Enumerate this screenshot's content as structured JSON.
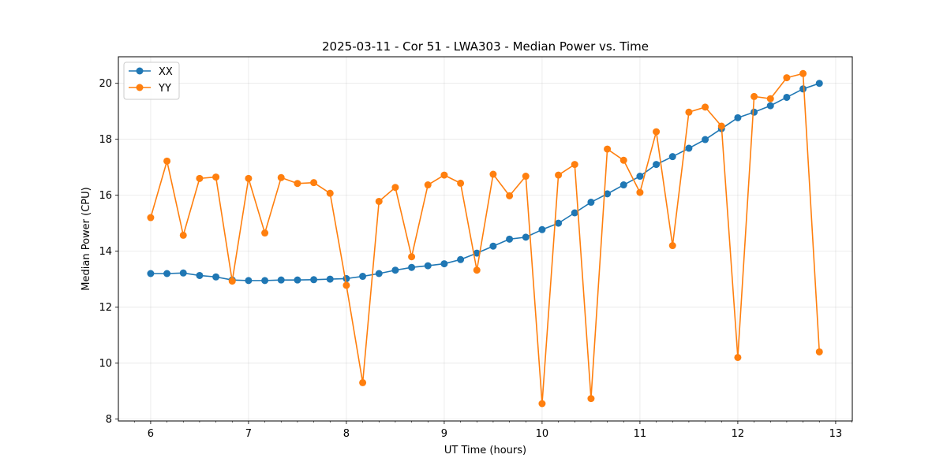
{
  "chart_data": {
    "type": "line",
    "title": "2025-03-11 - Cor 51 - LWA303 - Median Power vs. Time",
    "xlabel": "UT Time (hours)",
    "ylabel": "Median Power (CPU)",
    "xlim": [
      5.67,
      13.17
    ],
    "ylim": [
      7.93,
      20.95
    ],
    "xticks": [
      6,
      7,
      8,
      9,
      10,
      11,
      12,
      13
    ],
    "xtick_labels": [
      "6",
      "7",
      "8",
      "9",
      "10",
      "11",
      "12",
      "13"
    ],
    "yticks": [
      8,
      10,
      12,
      14,
      16,
      18,
      20
    ],
    "ytick_labels": [
      "8",
      "10",
      "12",
      "14",
      "16",
      "18",
      "20"
    ],
    "grid": true,
    "legend_position": "top-left",
    "series": [
      {
        "name": "XX",
        "color": "#1f77b4",
        "x": [
          6.0,
          6.1667,
          6.3333,
          6.5,
          6.6667,
          6.8333,
          7.0,
          7.1667,
          7.3333,
          7.5,
          7.6667,
          7.8333,
          8.0,
          8.1667,
          8.3333,
          8.5,
          8.6667,
          8.8333,
          9.0,
          9.1667,
          9.3333,
          9.5,
          9.6667,
          9.8333,
          10.0,
          10.1667,
          10.3333,
          10.5,
          10.6667,
          10.8333,
          11.0,
          11.1667,
          11.3333,
          11.5,
          11.6667,
          11.8333,
          12.0,
          12.1667,
          12.3333,
          12.5,
          12.6667,
          12.8333
        ],
        "values": [
          13.2,
          13.2,
          13.22,
          13.13,
          13.08,
          12.97,
          12.95,
          12.95,
          12.97,
          12.97,
          12.98,
          13.0,
          13.02,
          13.1,
          13.2,
          13.32,
          13.42,
          13.48,
          13.55,
          13.7,
          13.93,
          14.18,
          14.43,
          14.5,
          14.77,
          15.0,
          15.37,
          15.75,
          16.05,
          16.37,
          16.68,
          17.1,
          17.38,
          17.68,
          17.99,
          18.38,
          18.77,
          18.97,
          19.2,
          19.5,
          19.8,
          20.0
        ]
      },
      {
        "name": "YY",
        "color": "#ff7f0e",
        "x": [
          6.0,
          6.1667,
          6.3333,
          6.5,
          6.6667,
          6.8333,
          7.0,
          7.1667,
          7.3333,
          7.5,
          7.6667,
          7.8333,
          8.0,
          8.1667,
          8.3333,
          8.5,
          8.6667,
          8.8333,
          9.0,
          9.1667,
          9.3333,
          9.5,
          9.6667,
          9.8333,
          10.0,
          10.1667,
          10.3333,
          10.5,
          10.6667,
          10.8333,
          11.0,
          11.1667,
          11.3333,
          11.5,
          11.6667,
          11.8333,
          12.0,
          12.1667,
          12.3333,
          12.5,
          12.6667,
          12.8333
        ],
        "values": [
          15.2,
          17.22,
          14.57,
          16.6,
          16.65,
          12.93,
          16.6,
          14.65,
          16.63,
          16.42,
          16.45,
          16.07,
          12.78,
          9.3,
          15.78,
          16.28,
          13.8,
          16.37,
          16.72,
          16.43,
          13.32,
          16.75,
          15.98,
          16.68,
          8.55,
          16.72,
          17.1,
          8.73,
          17.65,
          17.25,
          16.1,
          18.27,
          14.2,
          18.97,
          19.15,
          18.47,
          10.2,
          19.53,
          19.45,
          20.2,
          20.35,
          10.4
        ]
      }
    ]
  }
}
